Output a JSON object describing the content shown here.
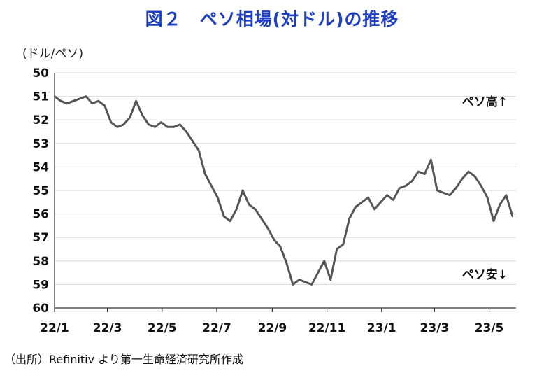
{
  "chart_data": {
    "type": "line",
    "title": "図２　ペソ相場(対ドル)の推移",
    "ylabel": "(ドル/ペソ)",
    "ylim": [
      50,
      60
    ],
    "y_inverted": true,
    "yticks": [
      50,
      51,
      52,
      53,
      54,
      55,
      56,
      57,
      58,
      59,
      60
    ],
    "xlim": [
      "2022-01-01",
      "2023-05-31"
    ],
    "xticks": [
      {
        "date": "2022-01-01",
        "label": "22/1"
      },
      {
        "date": "2022-03-01",
        "label": "22/3"
      },
      {
        "date": "2022-05-01",
        "label": "22/5"
      },
      {
        "date": "2022-07-01",
        "label": "22/7"
      },
      {
        "date": "2022-09-01",
        "label": "22/9"
      },
      {
        "date": "2022-11-01",
        "label": "22/11"
      },
      {
        "date": "2023-01-01",
        "label": "23/1"
      },
      {
        "date": "2023-03-01",
        "label": "23/3"
      },
      {
        "date": "2023-05-01",
        "label": "23/5"
      }
    ],
    "grid": "horizontal",
    "series_color": "#555555",
    "series": [
      {
        "name": "",
        "x": [
          "2022-01-01",
          "2022-01-08",
          "2022-01-15",
          "2022-01-22",
          "2022-01-29",
          "2022-02-05",
          "2022-02-12",
          "2022-02-19",
          "2022-02-26",
          "2022-03-05",
          "2022-03-12",
          "2022-03-19",
          "2022-03-26",
          "2022-04-02",
          "2022-04-09",
          "2022-04-16",
          "2022-04-23",
          "2022-04-30",
          "2022-05-07",
          "2022-05-14",
          "2022-05-21",
          "2022-05-28",
          "2022-06-04",
          "2022-06-11",
          "2022-06-18",
          "2022-06-25",
          "2022-07-02",
          "2022-07-09",
          "2022-07-16",
          "2022-07-23",
          "2022-07-30",
          "2022-08-06",
          "2022-08-13",
          "2022-08-20",
          "2022-08-27",
          "2022-09-03",
          "2022-09-10",
          "2022-09-17",
          "2022-09-24",
          "2022-10-01",
          "2022-10-08",
          "2022-10-15",
          "2022-10-22",
          "2022-10-29",
          "2022-11-05",
          "2022-11-12",
          "2022-11-19",
          "2022-11-26",
          "2022-12-03",
          "2022-12-10",
          "2022-12-17",
          "2022-12-24",
          "2022-12-31",
          "2023-01-07",
          "2023-01-14",
          "2023-01-21",
          "2023-01-28",
          "2023-02-04",
          "2023-02-11",
          "2023-02-18",
          "2023-02-25",
          "2023-03-04",
          "2023-03-11",
          "2023-03-18",
          "2023-03-25",
          "2023-04-01",
          "2023-04-08",
          "2023-04-15",
          "2023-04-22",
          "2023-04-29",
          "2023-05-06",
          "2023-05-13",
          "2023-05-20",
          "2023-05-27"
        ],
        "values": [
          51.0,
          51.2,
          51.3,
          51.2,
          51.1,
          51.0,
          51.3,
          51.2,
          51.4,
          52.1,
          52.3,
          52.2,
          51.9,
          51.2,
          51.8,
          52.2,
          52.3,
          52.1,
          52.3,
          52.3,
          52.2,
          52.5,
          52.9,
          53.3,
          54.3,
          54.8,
          55.3,
          56.1,
          56.3,
          55.8,
          55.0,
          55.6,
          55.8,
          56.2,
          56.6,
          57.1,
          57.4,
          58.1,
          59.0,
          58.8,
          58.9,
          59.0,
          58.5,
          58.0,
          58.8,
          57.5,
          57.3,
          56.2,
          55.7,
          55.5,
          55.3,
          55.8,
          55.5,
          55.2,
          55.4,
          54.9,
          54.8,
          54.6,
          54.2,
          54.3,
          53.7,
          55.0,
          55.1,
          55.2,
          54.9,
          54.5,
          54.2,
          54.4,
          54.8,
          55.3,
          56.3,
          55.6,
          55.2,
          56.1
        ]
      }
    ],
    "annotations": [
      {
        "text": "ペソ高↑",
        "anchor": "upper-right"
      },
      {
        "text": "ペソ安↓",
        "anchor": "lower-right"
      }
    ],
    "source": "（出所）Refinitiv より第一生命経済研究所作成"
  }
}
